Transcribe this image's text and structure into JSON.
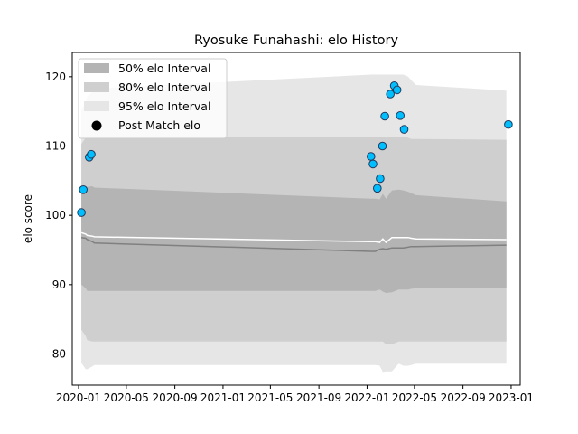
{
  "chart_data": {
    "type": "line",
    "title": "Ryosuke Funahashi: elo History",
    "xlabel": "",
    "ylabel": "elo score",
    "ylim": [
      75.5,
      123.5
    ],
    "xlim": [
      "2019-12-16",
      "2023-01-24"
    ],
    "x_ticks": [
      "2020-01",
      "2020-05",
      "2020-09",
      "2021-01",
      "2021-05",
      "2021-09",
      "2022-01",
      "2022-05",
      "2022-09",
      "2023-01"
    ],
    "y_ticks": [
      80,
      90,
      100,
      110,
      120
    ],
    "grid": false,
    "legend_position": "top-left",
    "legend": {
      "interval_50": "50% elo Interval",
      "interval_80": "80% elo Interval",
      "interval_95": "95% elo Interval",
      "post_match": "Post Match elo"
    },
    "colors": {
      "interval_50": "#b4b4b4",
      "interval_80": "#cfcfcf",
      "interval_95": "#e6e6e6",
      "median_line": "#808080",
      "mean_line": "#ffffff",
      "point_fill": "#00bfff",
      "point_edge": "#1f3a5f"
    },
    "bands": {
      "x": [
        "2020-01-08",
        "2020-01-19",
        "2020-01-23",
        "2020-02-05",
        "2020-02-10",
        "2022-01-12",
        "2022-01-22",
        "2022-02-02",
        "2022-02-10",
        "2022-02-18",
        "2022-03-05",
        "2022-03-22",
        "2022-04-03",
        "2022-04-15",
        "2022-04-23",
        "2022-05-05",
        "2022-12-20"
      ],
      "lo95": [
        78.7,
        77.8,
        77.8,
        78.2,
        78.4,
        78.4,
        78.4,
        78.3,
        77.4,
        77.5,
        77.5,
        78.6,
        78.3,
        78.3,
        78.4,
        78.6,
        78.6
      ],
      "lo80": [
        83.5,
        82.6,
        82.0,
        81.8,
        81.8,
        81.8,
        81.8,
        81.8,
        81.8,
        81.4,
        81.4,
        81.8,
        81.8,
        81.8,
        81.8,
        81.8,
        81.8
      ],
      "lo50": [
        90.0,
        89.5,
        89.1,
        89.1,
        89.1,
        89.1,
        89.1,
        89.3,
        89.0,
        88.8,
        88.9,
        89.3,
        89.3,
        89.3,
        89.4,
        89.5,
        89.5
      ],
      "median": [
        96.8,
        96.7,
        96.5,
        96.2,
        96.0,
        94.8,
        94.8,
        95.1,
        95.2,
        95.1,
        95.3,
        95.3,
        95.3,
        95.4,
        95.5,
        95.5,
        95.7
      ],
      "mean": [
        97.5,
        97.3,
        97.1,
        97.0,
        96.9,
        96.2,
        96.2,
        96.1,
        96.6,
        96.1,
        96.8,
        96.8,
        96.8,
        96.8,
        96.7,
        96.6,
        96.5
      ],
      "hi50": [
        103.8,
        104.1,
        104.1,
        104.2,
        104.0,
        102.4,
        102.4,
        102.3,
        103.1,
        102.4,
        103.6,
        103.7,
        103.6,
        103.4,
        103.2,
        102.9,
        102.0
      ],
      "hi80": [
        110.3,
        111.2,
        111.3,
        111.3,
        111.3,
        111.3,
        111.3,
        111.3,
        111.3,
        111.2,
        111.3,
        111.3,
        111.3,
        111.2,
        111.0,
        111.0,
        110.9
      ],
      "hi95": [
        115.3,
        116.3,
        117.2,
        117.8,
        118.3,
        120.3,
        120.3,
        120.3,
        120.3,
        120.3,
        120.3,
        120.3,
        120.3,
        120.0,
        119.5,
        118.8,
        118.0
      ]
    },
    "series": [
      {
        "name": "Post Match elo",
        "points": [
          {
            "x": "2020-01-08",
            "y": 100.4
          },
          {
            "x": "2020-01-13",
            "y": 103.7
          },
          {
            "x": "2020-01-28",
            "y": 108.4
          },
          {
            "x": "2020-02-02",
            "y": 108.8
          },
          {
            "x": "2022-01-11",
            "y": 108.5
          },
          {
            "x": "2022-01-16",
            "y": 107.4
          },
          {
            "x": "2022-01-27",
            "y": 103.9
          },
          {
            "x": "2022-02-03",
            "y": 105.3
          },
          {
            "x": "2022-02-09",
            "y": 110.0
          },
          {
            "x": "2022-02-15",
            "y": 114.3
          },
          {
            "x": "2022-03-01",
            "y": 117.5
          },
          {
            "x": "2022-03-11",
            "y": 118.7
          },
          {
            "x": "2022-03-18",
            "y": 118.1
          },
          {
            "x": "2022-03-26",
            "y": 114.4
          },
          {
            "x": "2022-04-05",
            "y": 112.4
          },
          {
            "x": "2022-12-25",
            "y": 113.1
          }
        ]
      }
    ]
  }
}
